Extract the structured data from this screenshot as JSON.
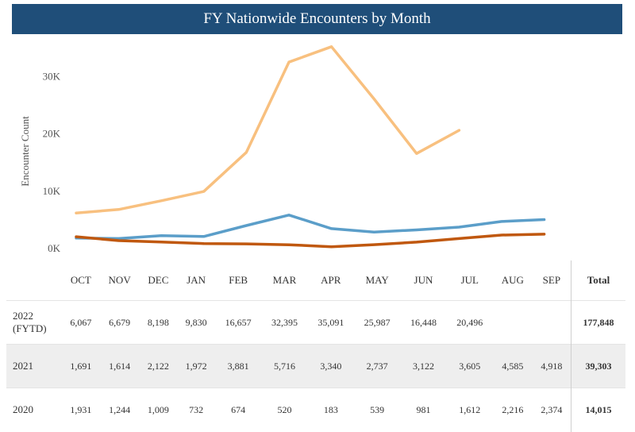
{
  "title": "FY Nationwide Encounters by Month",
  "chart_data": {
    "type": "line",
    "title": "FY Nationwide Encounters by Month",
    "ylabel": "Encounter Count",
    "xlabel": "",
    "ylim": [
      0,
      37000
    ],
    "yticks": [
      0,
      10000,
      20000,
      30000
    ],
    "ytick_labels": [
      "0K",
      "10K",
      "20K",
      "30K"
    ],
    "categories": [
      "OCT",
      "NOV",
      "DEC",
      "JAN",
      "FEB",
      "MAR",
      "APR",
      "MAY",
      "JUN",
      "JUL",
      "AUG",
      "SEP"
    ],
    "series": [
      {
        "name": "2022 (FYTD)",
        "color": "#f8c07f",
        "values": [
          6067,
          6679,
          8198,
          9830,
          16657,
          32395,
          35091,
          25987,
          16448,
          20496,
          null,
          null
        ]
      },
      {
        "name": "2021",
        "color": "#5b9ec9",
        "values": [
          1691,
          1614,
          2122,
          1972,
          3881,
          5716,
          3340,
          2737,
          3122,
          3605,
          4585,
          4918
        ]
      },
      {
        "name": "2020",
        "color": "#c0580f",
        "values": [
          1931,
          1244,
          1009,
          732,
          674,
          520,
          183,
          539,
          981,
          1612,
          2216,
          2374
        ]
      }
    ],
    "grid": false,
    "legend": "table-below"
  },
  "table": {
    "total_header": "Total",
    "months": [
      "OCT",
      "NOV",
      "DEC",
      "JAN",
      "FEB",
      "MAR",
      "APR",
      "MAY",
      "JUN",
      "JUL",
      "AUG",
      "SEP"
    ],
    "rows": [
      {
        "year_line1": "2022",
        "year_line2": "(FYTD)",
        "cells": [
          "6,067",
          "6,679",
          "8,198",
          "9,830",
          "16,657",
          "32,395",
          "35,091",
          "25,987",
          "16,448",
          "20,496",
          "",
          ""
        ],
        "total": "177,848"
      },
      {
        "year_line1": "2021",
        "year_line2": "",
        "cells": [
          "1,691",
          "1,614",
          "2,122",
          "1,972",
          "3,881",
          "5,716",
          "3,340",
          "2,737",
          "3,122",
          "3,605",
          "4,585",
          "4,918"
        ],
        "total": "39,303"
      },
      {
        "year_line1": "2020",
        "year_line2": "",
        "cells": [
          "1,931",
          "1,244",
          "1,009",
          "732",
          "674",
          "520",
          "183",
          "539",
          "981",
          "1,612",
          "2,216",
          "2,374"
        ],
        "total": "14,015"
      }
    ]
  }
}
